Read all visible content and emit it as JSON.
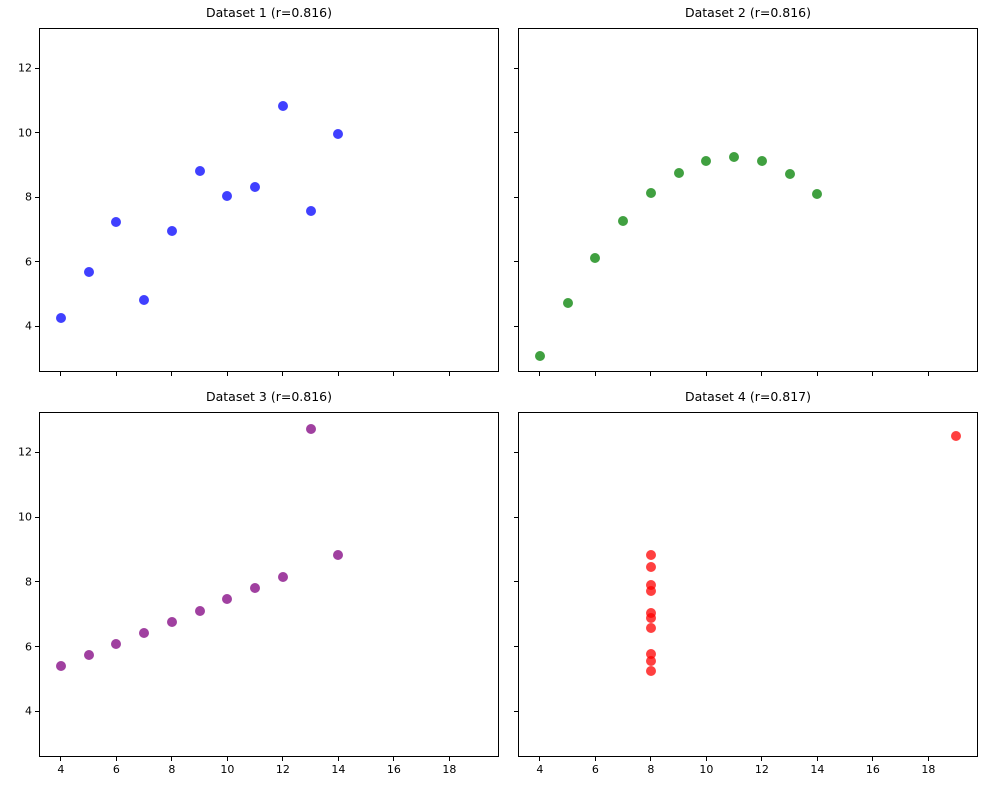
{
  "figure": {
    "background": "#ffffff",
    "spine_color": "#000000",
    "text_color": "#000000"
  },
  "chart_data": [
    {
      "type": "scatter",
      "title": "Dataset 1 (r=0.816)",
      "color": "#0000ff",
      "alpha": 0.75,
      "x": [
        10,
        8,
        13,
        9,
        11,
        14,
        6,
        4,
        12,
        7,
        5
      ],
      "y": [
        8.04,
        6.95,
        7.58,
        8.81,
        8.33,
        9.96,
        7.24,
        4.26,
        10.84,
        4.82,
        5.68
      ],
      "xlim": [
        3.25,
        19.75
      ],
      "ylim": [
        2.62,
        13.22
      ],
      "xticks": [
        4,
        6,
        8,
        10,
        12,
        14,
        16,
        18
      ],
      "yticks": [
        4,
        6,
        8,
        10,
        12
      ],
      "show_x_tick_labels": false,
      "show_y_tick_labels": true,
      "grid": false,
      "legend": null
    },
    {
      "type": "scatter",
      "title": "Dataset 2 (r=0.816)",
      "color": "#008000",
      "alpha": 0.75,
      "x": [
        10,
        8,
        13,
        9,
        11,
        14,
        6,
        4,
        12,
        7,
        5
      ],
      "y": [
        9.14,
        8.14,
        8.74,
        8.77,
        9.26,
        8.1,
        6.13,
        3.1,
        9.13,
        7.26,
        4.74
      ],
      "xlim": [
        3.25,
        19.75
      ],
      "ylim": [
        2.62,
        13.22
      ],
      "xticks": [
        4,
        6,
        8,
        10,
        12,
        14,
        16,
        18
      ],
      "yticks": [
        4,
        6,
        8,
        10,
        12
      ],
      "show_x_tick_labels": false,
      "show_y_tick_labels": false,
      "grid": false,
      "legend": null
    },
    {
      "type": "scatter",
      "title": "Dataset 3 (r=0.816)",
      "color": "#800080",
      "alpha": 0.75,
      "x": [
        10,
        8,
        13,
        9,
        11,
        14,
        6,
        4,
        12,
        7,
        5
      ],
      "y": [
        7.46,
        6.77,
        12.74,
        7.11,
        7.81,
        8.84,
        6.08,
        5.39,
        8.15,
        6.42,
        5.73
      ],
      "xlim": [
        3.25,
        19.75
      ],
      "ylim": [
        2.62,
        13.22
      ],
      "xticks": [
        4,
        6,
        8,
        10,
        12,
        14,
        16,
        18
      ],
      "yticks": [
        4,
        6,
        8,
        10,
        12
      ],
      "show_x_tick_labels": true,
      "show_y_tick_labels": true,
      "grid": false,
      "legend": null
    },
    {
      "type": "scatter",
      "title": "Dataset 4 (r=0.817)",
      "color": "#ff0000",
      "alpha": 0.75,
      "x": [
        8,
        8,
        8,
        8,
        8,
        8,
        8,
        19,
        8,
        8,
        8
      ],
      "y": [
        6.58,
        5.76,
        7.71,
        8.84,
        8.47,
        7.04,
        5.25,
        12.5,
        5.56,
        7.91,
        6.89
      ],
      "xlim": [
        3.25,
        19.75
      ],
      "ylim": [
        2.62,
        13.22
      ],
      "xticks": [
        4,
        6,
        8,
        10,
        12,
        14,
        16,
        18
      ],
      "yticks": [
        4,
        6,
        8,
        10,
        12
      ],
      "show_x_tick_labels": true,
      "show_y_tick_labels": false,
      "grid": false,
      "legend": null
    }
  ]
}
